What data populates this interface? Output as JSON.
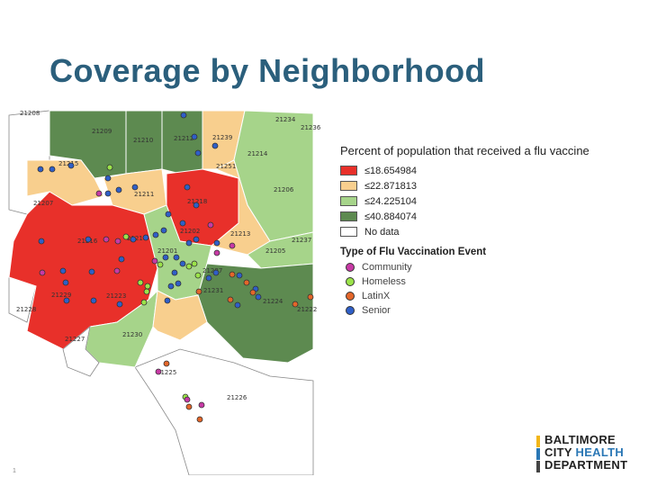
{
  "slide": {
    "title": "Coverage by Neighborhood"
  },
  "legend": {
    "coverage_title": "Percent of population that received a flu vaccine",
    "coverage_classes": [
      {
        "label": "≤18.654984",
        "color": "#e8302a"
      },
      {
        "label": "≤22.871813",
        "color": "#f8cf8e"
      },
      {
        "label": "≤24.225104",
        "color": "#a6d48a"
      },
      {
        "label": "≤40.884074",
        "color": "#5d8a50"
      },
      {
        "label": "No data",
        "color": "#ffffff"
      }
    ],
    "event_title": "Type of Flu Vaccination Event",
    "event_types": [
      {
        "label": "Community",
        "color": "#c73aa5"
      },
      {
        "label": "Homeless",
        "color": "#9be34a"
      },
      {
        "label": "LatinX",
        "color": "#e3662a"
      },
      {
        "label": "Senior",
        "color": "#2f5fc8"
      }
    ]
  },
  "map": {
    "zip_labels": [
      "21208",
      "21209",
      "21210",
      "21212",
      "21239",
      "21234",
      "21236",
      "21215",
      "21214",
      "21251",
      "21207",
      "21211",
      "21218",
      "21206",
      "21216",
      "21217",
      "21213",
      "21237",
      "21201",
      "21202",
      "21205",
      "21229",
      "21223",
      "21287",
      "21231",
      "21224",
      "21222",
      "21228",
      "21227",
      "21230",
      "21225",
      "21226"
    ]
  },
  "logo": {
    "line1": "BALTIMORE",
    "line2a": "CITY",
    "line2b": "HEALTH",
    "line3": "DEPARTMENT",
    "bar_colors": [
      "#f2b619",
      "#2a77b5",
      "#444444"
    ]
  },
  "footer": {
    "page_number": "1"
  }
}
